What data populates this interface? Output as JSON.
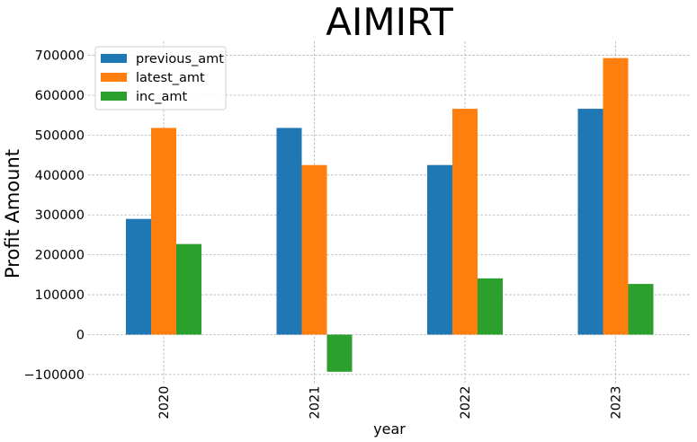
{
  "chart_data": {
    "type": "bar",
    "title": "AIMIRT",
    "xlabel": "year",
    "ylabel": "Profit Amount",
    "categories": [
      "2020",
      "2021",
      "2022",
      "2023"
    ],
    "series": [
      {
        "name": "previous_amt",
        "color": "#1f77b4",
        "values": [
          290000,
          518000,
          425000,
          566000
        ]
      },
      {
        "name": "latest_amt",
        "color": "#ff7f0e",
        "values": [
          518000,
          425000,
          566000,
          693000
        ]
      },
      {
        "name": "inc_amt",
        "color": "#2ca02c",
        "values": [
          227000,
          -93000,
          141000,
          127000
        ]
      }
    ],
    "yticks": [
      -100000,
      0,
      100000,
      200000,
      300000,
      400000,
      500000,
      600000,
      700000
    ],
    "ylim": [
      -125000,
      735000
    ],
    "grid": true,
    "legend_position": "top-left"
  }
}
